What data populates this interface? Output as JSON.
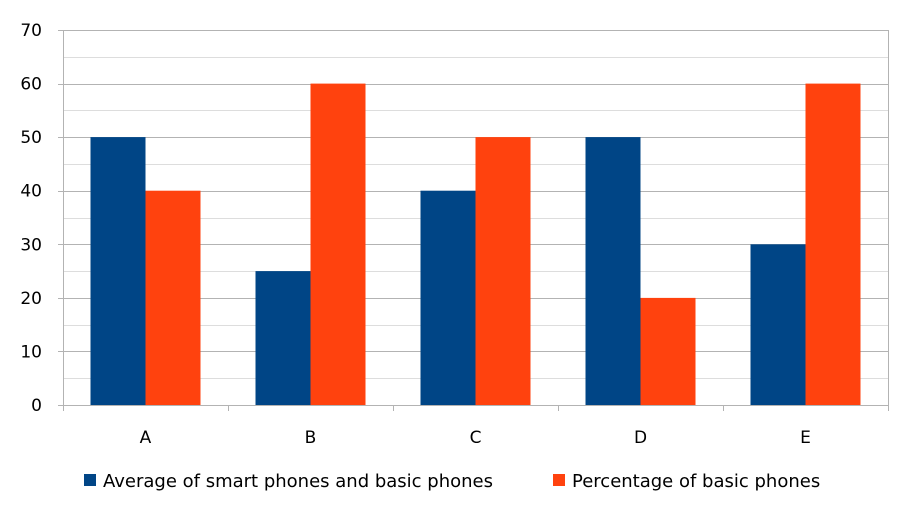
{
  "chart_data": {
    "type": "bar",
    "categories": [
      "A",
      "B",
      "C",
      "D",
      "E"
    ],
    "series": [
      {
        "name": "Average of smart phones and basic phones",
        "color": "#004586",
        "values": [
          50,
          25,
          40,
          50,
          30
        ]
      },
      {
        "name": "Percentage of basic phones",
        "color": "#ff420e",
        "values": [
          40,
          60,
          50,
          20,
          60
        ]
      }
    ],
    "ylim": [
      0,
      70
    ],
    "yticks": [
      0,
      10,
      20,
      30,
      40,
      50,
      60,
      70
    ],
    "grid": true,
    "minor_grid": true,
    "legend_position": "bottom"
  }
}
